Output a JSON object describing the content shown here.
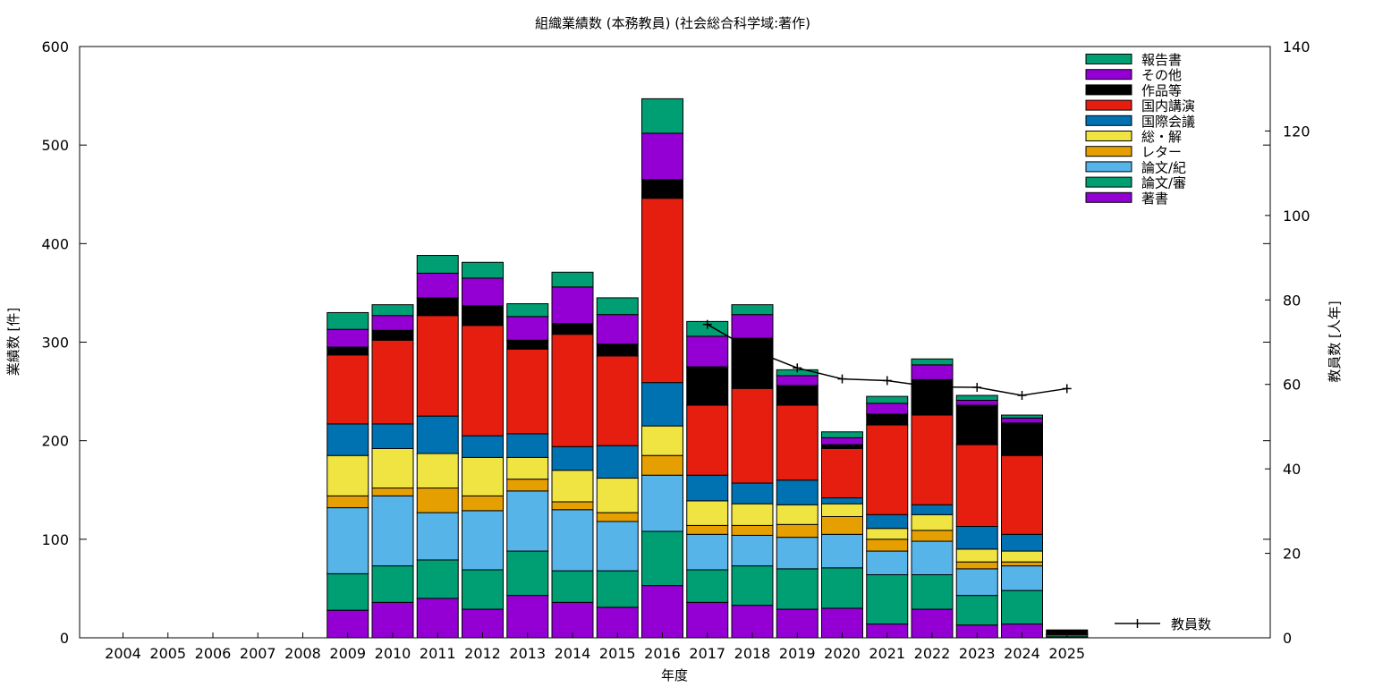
{
  "chart_data": {
    "type": "bar",
    "title": "組織業績数 (本務教員) (社会総合科学域:著作)",
    "xlabel": "年度",
    "ylabel": "業績数 [件]",
    "y2label": "教員数 [人年]",
    "categories": [
      "2004",
      "2005",
      "2006",
      "2007",
      "2008",
      "2009",
      "2010",
      "2011",
      "2012",
      "2013",
      "2014",
      "2015",
      "2016",
      "2017",
      "2018",
      "2019",
      "2020",
      "2021",
      "2022",
      "2023",
      "2024",
      "2025"
    ],
    "ylim": [
      0,
      600
    ],
    "y2lim": [
      0,
      140
    ],
    "yticks": [
      0,
      100,
      200,
      300,
      400,
      500,
      600
    ],
    "y2ticks": [
      0,
      20,
      40,
      60,
      80,
      100,
      120,
      140
    ],
    "stacked": true,
    "grid": false,
    "legend_position": "top-right",
    "series": [
      {
        "name": "著書",
        "color": "#9400d3",
        "values": [
          0,
          0,
          0,
          0,
          0,
          28,
          36,
          40,
          29,
          43,
          36,
          31,
          53,
          36,
          33,
          29,
          30,
          14,
          29,
          13,
          14,
          1
        ]
      },
      {
        "name": "論文/審",
        "color": "#009e73",
        "values": [
          0,
          0,
          0,
          0,
          0,
          37,
          37,
          39,
          40,
          45,
          32,
          37,
          55,
          33,
          40,
          41,
          41,
          50,
          35,
          30,
          34,
          2
        ]
      },
      {
        "name": "論文/紀",
        "color": "#56b4e9",
        "values": [
          0,
          0,
          0,
          0,
          0,
          67,
          71,
          48,
          60,
          61,
          62,
          50,
          57,
          36,
          31,
          32,
          34,
          24,
          34,
          27,
          25,
          0
        ]
      },
      {
        "name": "レター",
        "color": "#e69f00",
        "values": [
          0,
          0,
          0,
          0,
          0,
          12,
          8,
          25,
          15,
          12,
          8,
          9,
          20,
          9,
          10,
          13,
          18,
          12,
          11,
          7,
          4,
          0
        ]
      },
      {
        "name": "総・解",
        "color": "#f0e442",
        "values": [
          0,
          0,
          0,
          0,
          0,
          41,
          40,
          35,
          39,
          22,
          32,
          35,
          30,
          25,
          22,
          20,
          13,
          11,
          16,
          13,
          11,
          0
        ]
      },
      {
        "name": "国際会議",
        "color": "#0072b2",
        "values": [
          0,
          0,
          0,
          0,
          0,
          32,
          25,
          38,
          22,
          24,
          24,
          33,
          44,
          26,
          21,
          25,
          6,
          14,
          10,
          23,
          17,
          0
        ]
      },
      {
        "name": "国内講演",
        "color": "#e51e10",
        "values": [
          0,
          0,
          0,
          0,
          0,
          70,
          85,
          102,
          112,
          86,
          114,
          91,
          187,
          71,
          96,
          76,
          50,
          91,
          91,
          83,
          80,
          1
        ]
      },
      {
        "name": "作品等",
        "color": "#000000",
        "values": [
          0,
          0,
          0,
          0,
          0,
          8,
          10,
          18,
          20,
          9,
          11,
          12,
          19,
          39,
          51,
          20,
          4,
          11,
          36,
          40,
          33,
          4
        ]
      },
      {
        "name": "その他",
        "color": "#9400d3",
        "values": [
          0,
          0,
          0,
          0,
          0,
          18,
          15,
          25,
          28,
          24,
          37,
          30,
          47,
          31,
          24,
          10,
          7,
          11,
          15,
          5,
          5,
          0
        ]
      },
      {
        "name": "報告書",
        "color": "#009e73",
        "values": [
          0,
          0,
          0,
          0,
          0,
          17,
          11,
          18,
          16,
          13,
          15,
          17,
          35,
          15,
          10,
          6,
          6,
          7,
          6,
          5,
          3,
          0
        ]
      }
    ],
    "line_series": {
      "name": "教員数",
      "axis": "right",
      "color": "#000000",
      "x": [
        "2017",
        "2018",
        "2019",
        "2020",
        "2021",
        "2022",
        "2023",
        "2024",
        "2025"
      ],
      "values": [
        74.2,
        68.1,
        63.9,
        61.3,
        60.9,
        59.4,
        59.3,
        57.4,
        59.0
      ]
    }
  }
}
